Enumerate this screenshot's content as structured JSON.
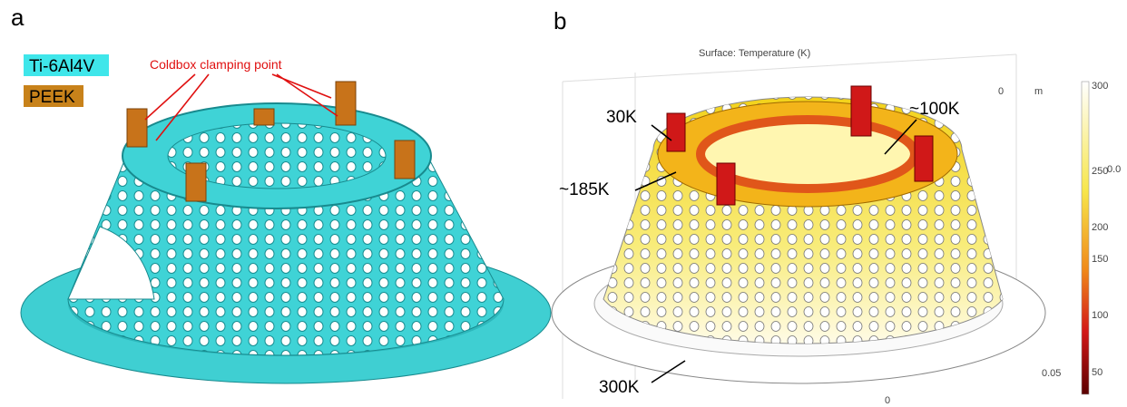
{
  "panels": [
    {
      "label": "a",
      "legend": [
        "Ti-6Al4V",
        "PEEK"
      ],
      "annotation": "Coldbox clamping point"
    },
    {
      "label": "b",
      "title": "Surface: Temperature (K)",
      "annotations": [
        "30K",
        "~100K",
        "~185K",
        "300K"
      ],
      "axis_labels": [
        "m",
        "0",
        "0.05",
        "0",
        "0.0"
      ],
      "colorbar_ticks": [
        300,
        250,
        200,
        150,
        100,
        50
      ]
    }
  ]
}
